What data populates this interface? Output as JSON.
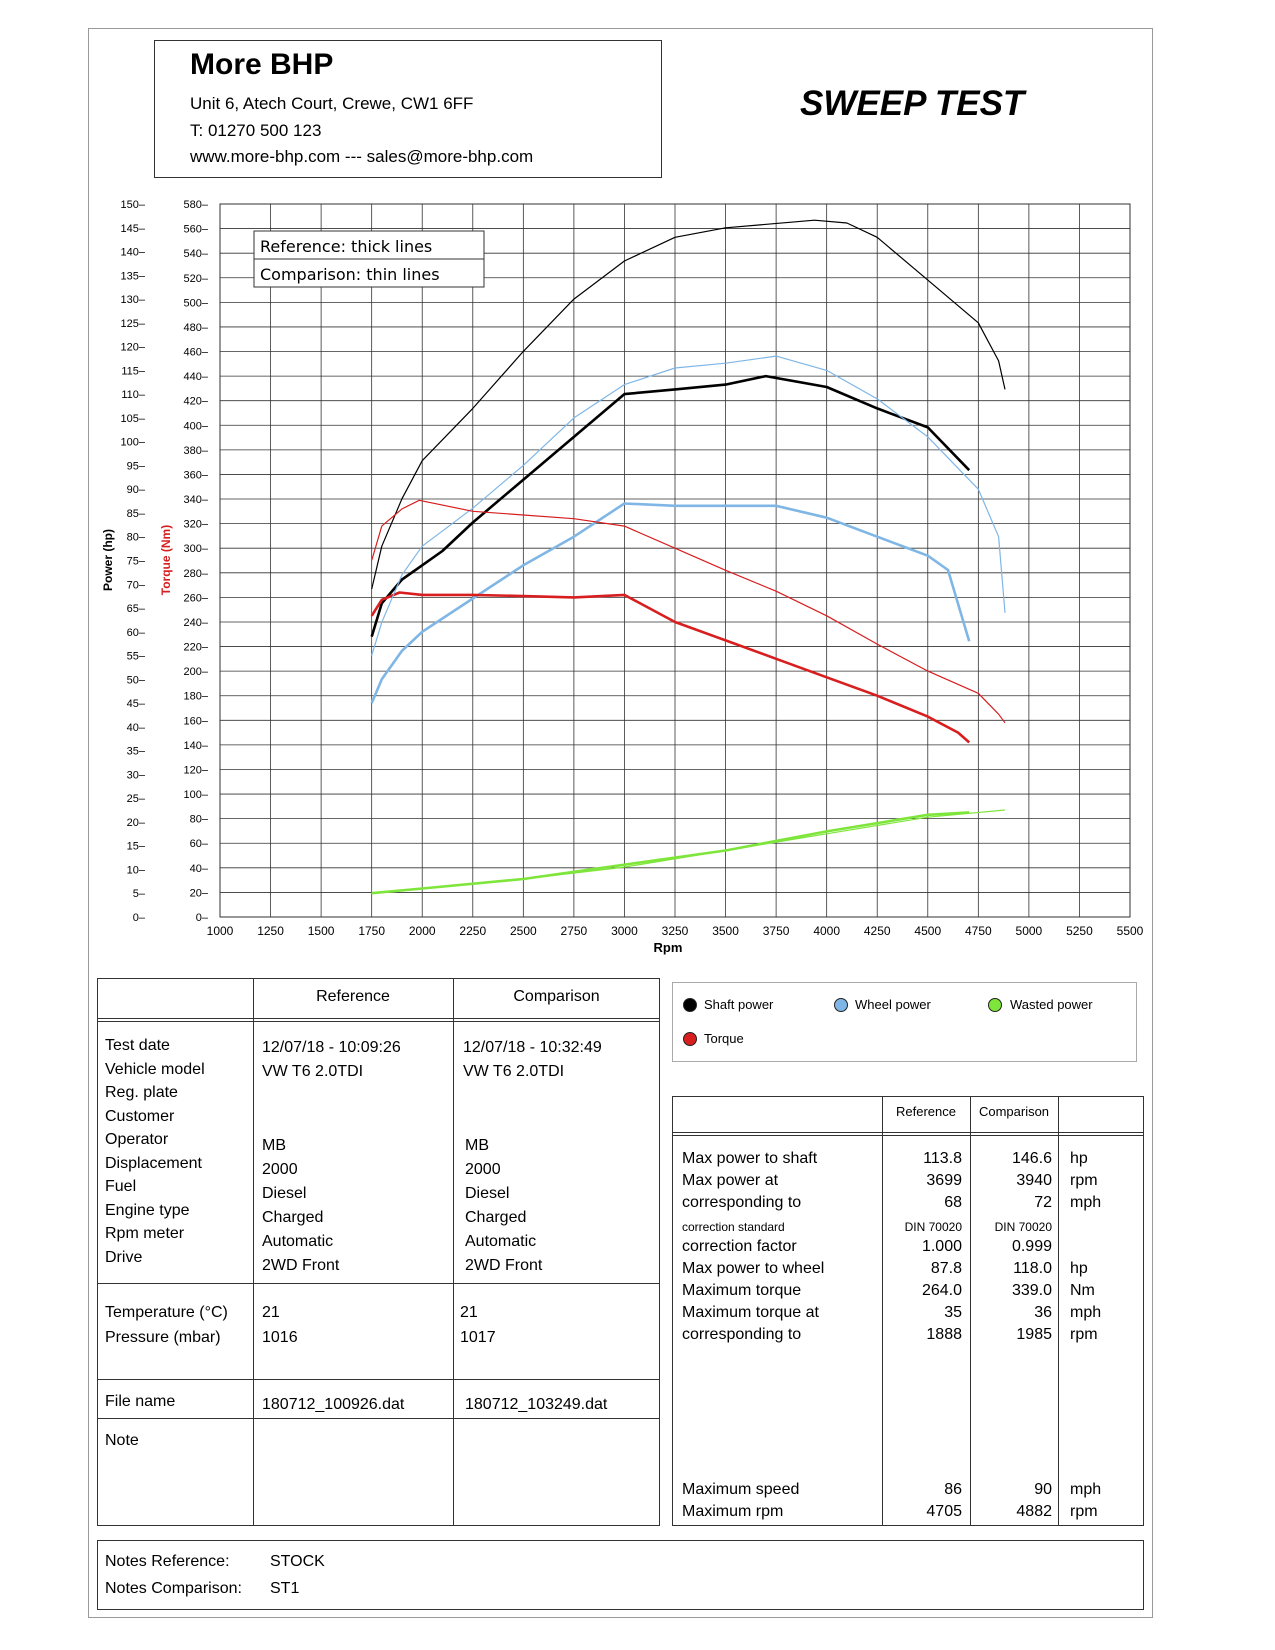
{
  "header": {
    "company": "More BHP",
    "address": "Unit 6, Atech Court, Crewe, CW1 6FF",
    "phone": "T: 01270 500 123",
    "web": "www.more-bhp.com --- sales@more-bhp.com",
    "report_title": "SWEEP TEST"
  },
  "chart_legend": {
    "reference": "Reference: thick lines",
    "comparison": "Comparison: thin lines"
  },
  "series_legend": {
    "shaft": "Shaft power",
    "wheel": "Wheel power",
    "wasted": "Wasted power",
    "torque": "Torque"
  },
  "colors": {
    "shaft": "#000000",
    "wheel": "#7fb6e6",
    "wasted": "#7ee63a",
    "torque": "#d81e1e"
  },
  "chart_data": {
    "type": "line",
    "xlabel": "Rpm",
    "ylabel": "Power (hp)",
    "y2label": "Torque (Nm)",
    "xlim": [
      1000,
      5500
    ],
    "ylim": [
      0,
      150
    ],
    "y2lim": [
      0,
      580
    ],
    "x_ticks": [
      1000,
      1250,
      1500,
      1750,
      2000,
      2250,
      2500,
      2750,
      3000,
      3250,
      3500,
      3750,
      4000,
      4250,
      4500,
      4750,
      5000,
      5250,
      5500
    ],
    "y_ticks": [
      0,
      5,
      10,
      15,
      20,
      25,
      30,
      35,
      40,
      45,
      50,
      55,
      60,
      65,
      70,
      75,
      80,
      85,
      90,
      95,
      100,
      105,
      110,
      115,
      120,
      125,
      130,
      135,
      140,
      145,
      150
    ],
    "y2_ticks": [
      0,
      20,
      40,
      60,
      80,
      100,
      120,
      140,
      160,
      180,
      200,
      220,
      240,
      260,
      280,
      300,
      320,
      340,
      360,
      380,
      400,
      420,
      440,
      460,
      480,
      500,
      520,
      540,
      560,
      580
    ],
    "grid": true,
    "series": [
      {
        "role": "shaft",
        "set": "reference",
        "axis": "y",
        "x": [
          1750,
          1800,
          1900,
          2000,
          2100,
          2250,
          2500,
          2750,
          3000,
          3250,
          3500,
          3699,
          4000,
          4250,
          4500,
          4705
        ],
        "y": [
          59,
          66,
          71,
          74,
          77,
          83,
          92,
          101,
          110,
          111,
          112,
          113.8,
          111.5,
          107,
          103,
          94
        ]
      },
      {
        "role": "wheel",
        "set": "reference",
        "axis": "y",
        "x": [
          1750,
          1800,
          1900,
          2000,
          2250,
          2500,
          2750,
          3000,
          3250,
          3500,
          3750,
          4000,
          4250,
          4500,
          4600,
          4705
        ],
        "y": [
          45,
          50,
          56,
          60,
          67,
          74,
          80,
          87,
          86.5,
          86.5,
          86.5,
          84,
          80,
          76,
          73,
          58
        ]
      },
      {
        "role": "torque",
        "set": "reference",
        "axis": "y2",
        "x": [
          1750,
          1800,
          1888,
          2000,
          2250,
          2500,
          2750,
          3000,
          3250,
          3500,
          3750,
          4000,
          4250,
          4500,
          4650,
          4705
        ],
        "y": [
          245,
          258,
          264,
          262,
          262,
          261,
          260,
          262,
          240,
          225,
          210,
          195,
          180,
          163,
          150,
          142
        ]
      },
      {
        "role": "wasted",
        "set": "reference",
        "axis": "y",
        "x": [
          1750,
          2000,
          2500,
          3000,
          3500,
          4000,
          4500,
          4705
        ],
        "y": [
          5,
          6,
          8,
          11,
          14,
          18,
          21.5,
          22
        ]
      },
      {
        "role": "shaft",
        "set": "comparison",
        "axis": "y",
        "x": [
          1750,
          1800,
          1900,
          2000,
          2250,
          2500,
          2750,
          3000,
          3250,
          3500,
          3940,
          4100,
          4250,
          4500,
          4750,
          4850,
          4882
        ],
        "y": [
          69,
          78,
          88,
          96,
          107,
          119,
          130,
          138,
          143,
          145,
          146.6,
          146,
          143,
          134,
          125,
          117,
          111
        ]
      },
      {
        "role": "wheel",
        "set": "comparison",
        "axis": "y",
        "x": [
          1750,
          1800,
          1900,
          2000,
          2250,
          2500,
          2750,
          3000,
          3250,
          3500,
          3750,
          4000,
          4250,
          4500,
          4750,
          4850,
          4882
        ],
        "y": [
          55,
          62,
          72,
          78,
          86,
          95,
          105,
          112,
          115.5,
          116.5,
          118,
          115,
          109,
          101,
          90,
          80,
          64
        ]
      },
      {
        "role": "torque",
        "set": "comparison",
        "axis": "y2",
        "x": [
          1750,
          1800,
          1900,
          1985,
          2250,
          2500,
          2750,
          3000,
          3250,
          3500,
          3750,
          4000,
          4250,
          4500,
          4750,
          4850,
          4882
        ],
        "y": [
          290,
          318,
          332,
          339,
          330,
          327,
          324,
          318,
          300,
          282,
          265,
          245,
          222,
          200,
          182,
          165,
          158
        ]
      },
      {
        "role": "wasted",
        "set": "comparison",
        "axis": "y",
        "x": [
          1750,
          2000,
          2500,
          3000,
          3500,
          4000,
          4500,
          4882
        ],
        "y": [
          5,
          6,
          8,
          10.5,
          14,
          17.5,
          21,
          22.5
        ]
      }
    ]
  },
  "info_table": {
    "col_reference": "Reference",
    "col_comparison": "Comparison",
    "labels": [
      "Test date",
      "Vehicle model",
      "Reg. plate",
      "Customer",
      "Operator",
      "Displacement",
      "Fuel",
      "Engine type",
      "Rpm meter",
      "Drive"
    ],
    "ref_date": "12/07/18 - 10:09:26",
    "ref_model": "VW T6 2.0TDI",
    "cmp_date": "12/07/18 - 10:32:49",
    "cmp_model": "VW T6 2.0TDI",
    "ref_operator": "MB",
    "ref_displacement": "2000",
    "ref_fuel": "Diesel",
    "ref_engine": "Charged",
    "ref_rpm": "Automatic",
    "ref_drive": "2WD Front",
    "cmp_operator": "MB",
    "cmp_displacement": "2000",
    "cmp_fuel": "Diesel",
    "cmp_engine": "Charged",
    "cmp_rpm": "Automatic",
    "cmp_drive": "2WD Front",
    "temp_label": "Temperature (°C)",
    "press_label": "Pressure (mbar)",
    "ref_temp": "21",
    "ref_press": "1016",
    "cmp_temp": "21",
    "cmp_press": "1017",
    "file_label": "File name",
    "ref_file": "180712_100926.dat",
    "cmp_file": "180712_103249.dat",
    "note_label": "Note"
  },
  "results_table": {
    "col_reference": "Reference",
    "col_comparison": "Comparison",
    "rows": [
      {
        "label": "Max power to shaft",
        "ref": "113.8",
        "cmp": "146.6",
        "unit": "hp"
      },
      {
        "label": "Max power at",
        "ref": "3699",
        "cmp": "3940",
        "unit": "rpm"
      },
      {
        "label": "corresponding to",
        "ref": "68",
        "cmp": "72",
        "unit": "mph"
      },
      {
        "label": "correction standard",
        "ref": "DIN 70020",
        "cmp": "DIN 70020",
        "unit": ""
      },
      {
        "label": "correction factor",
        "ref": "1.000",
        "cmp": "0.999",
        "unit": ""
      },
      {
        "label": "Max power to wheel",
        "ref": "87.8",
        "cmp": "118.0",
        "unit": "hp"
      },
      {
        "label": "Maximum torque",
        "ref": "264.0",
        "cmp": "339.0",
        "unit": "Nm"
      },
      {
        "label": "Maximum torque at",
        "ref": "35",
        "cmp": "36",
        "unit": "mph"
      },
      {
        "label": "corresponding to",
        "ref": "1888",
        "cmp": "1985",
        "unit": "rpm"
      }
    ],
    "speed_label": "Maximum speed",
    "speed_ref": "86",
    "speed_cmp": "90",
    "speed_unit": "mph",
    "rpm_label": "Maximum rpm",
    "rpm_ref": "4705",
    "rpm_cmp": "4882",
    "rpm_unit": "rpm"
  },
  "notes": {
    "ref_label": "Notes Reference:",
    "ref_value": "STOCK",
    "cmp_label": "Notes Comparison:",
    "cmp_value": "ST1"
  }
}
